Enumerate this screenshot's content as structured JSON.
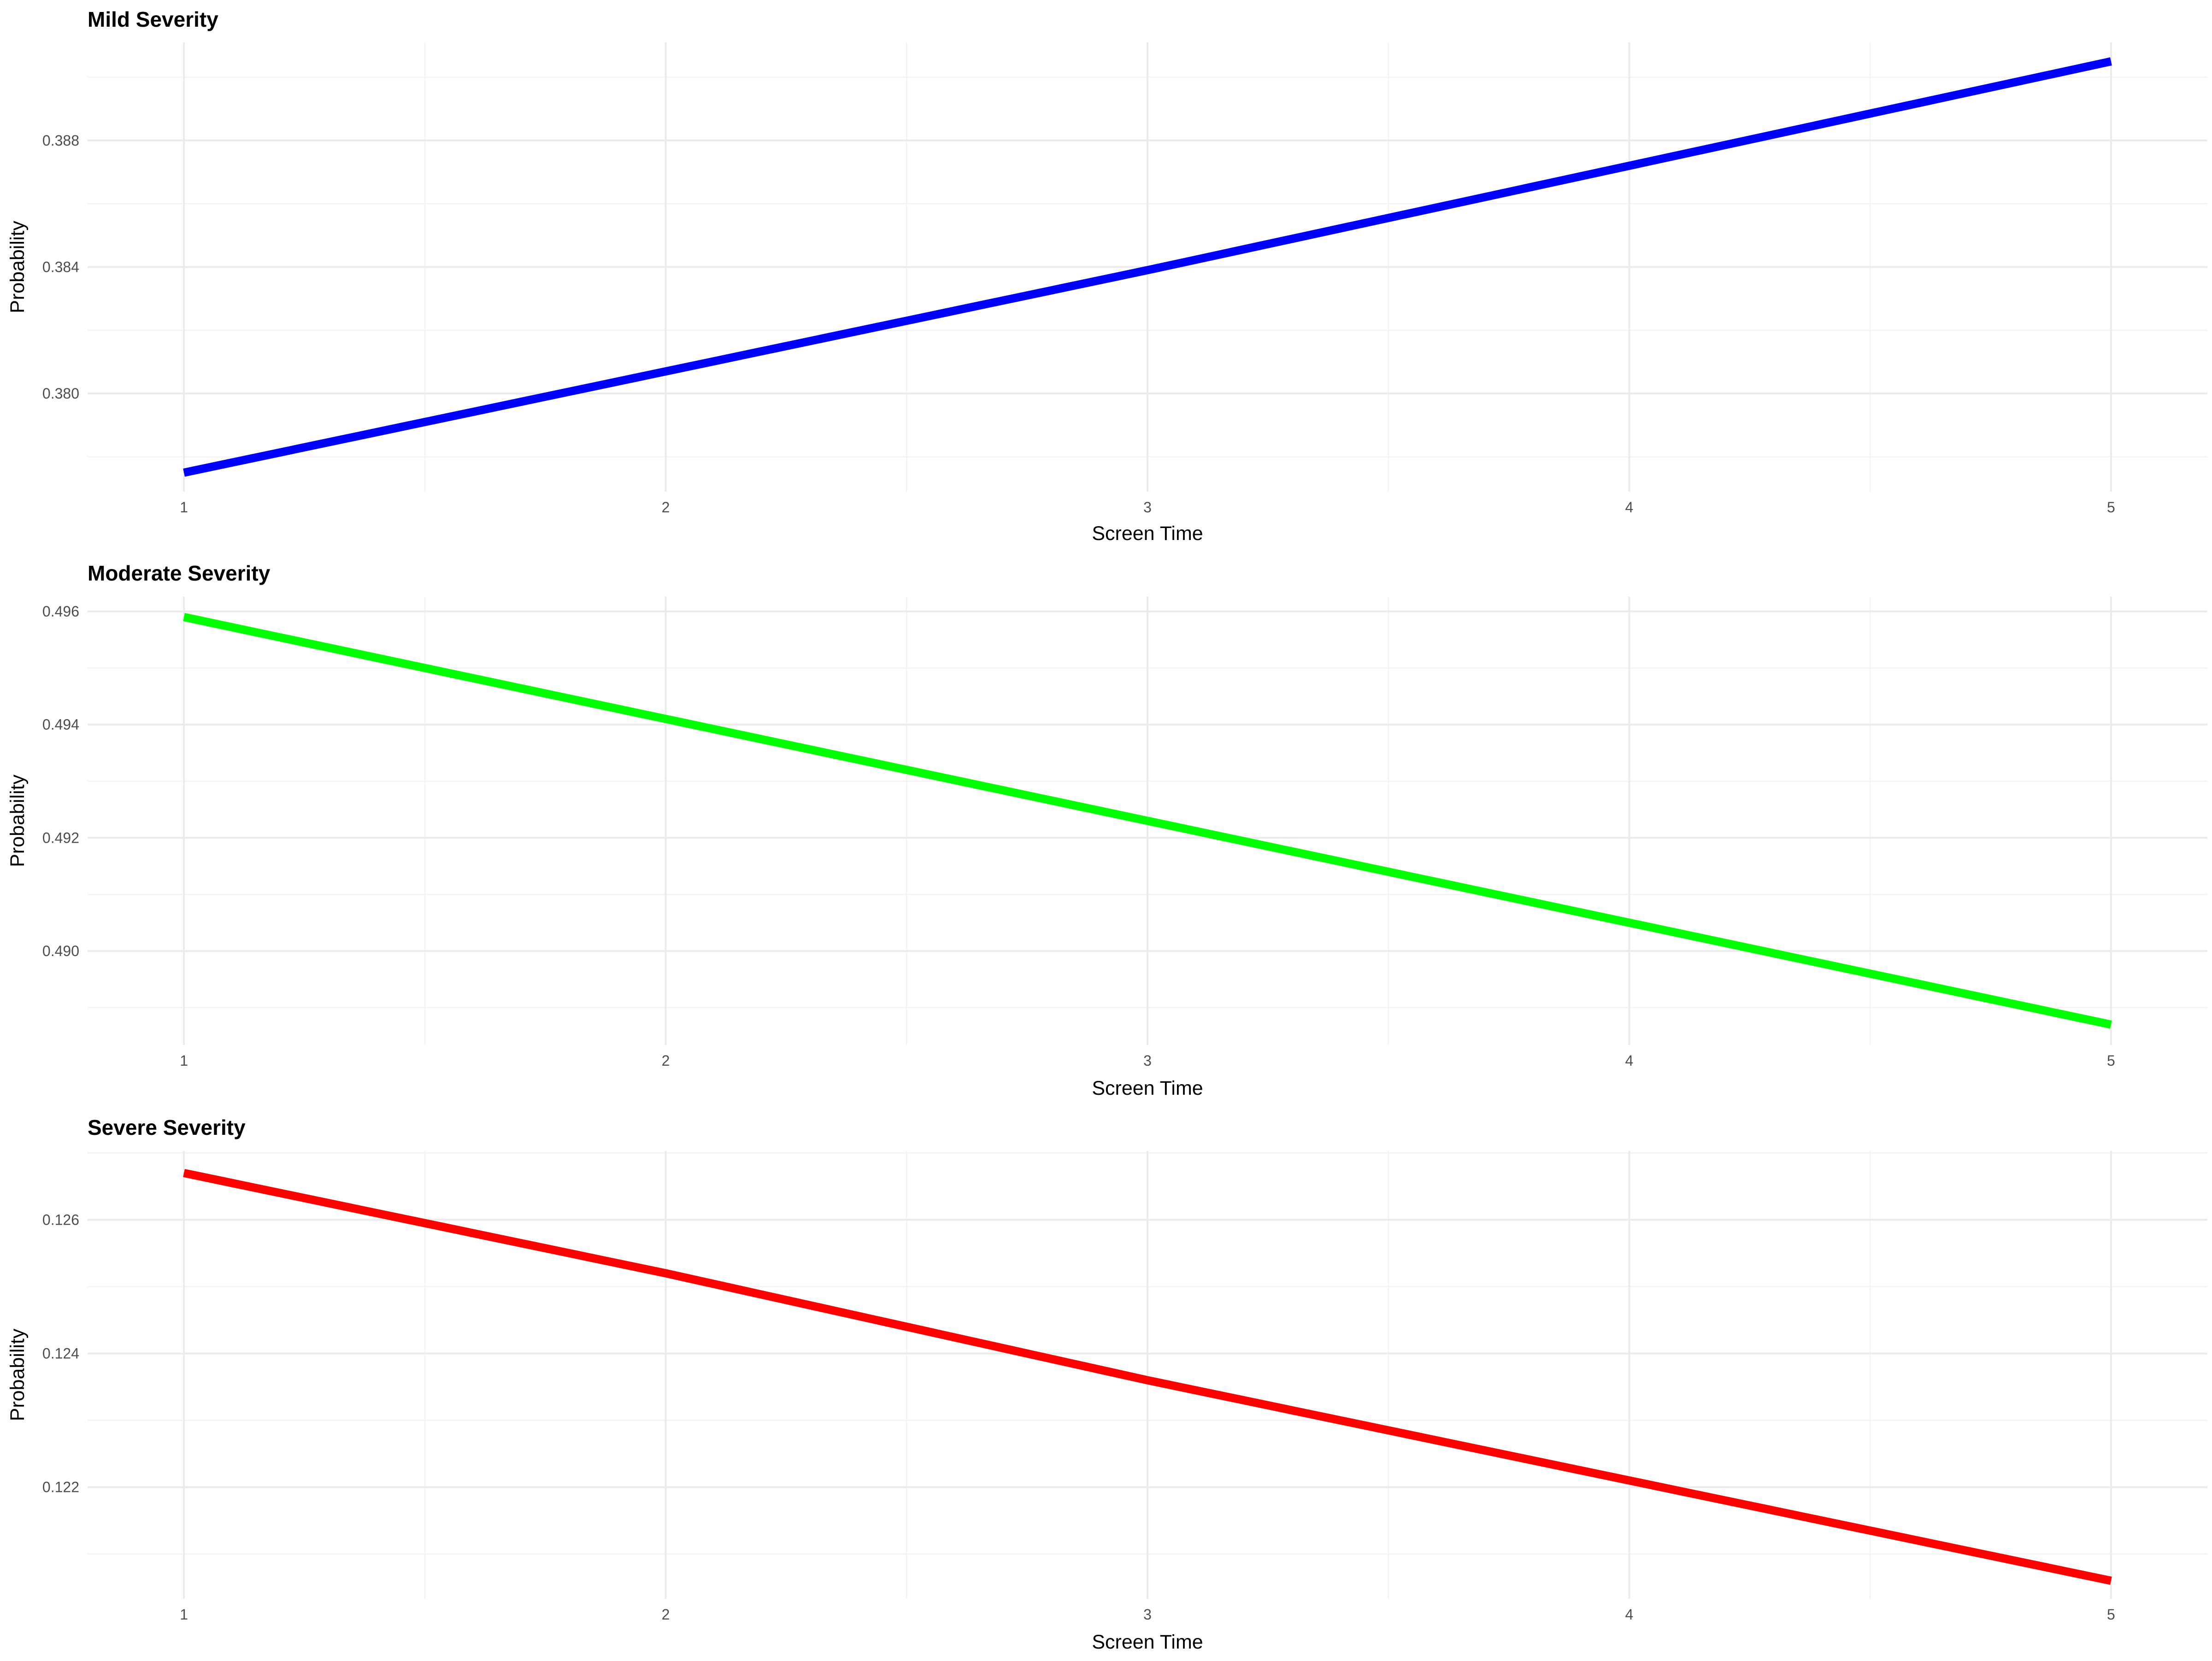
{
  "chart_data": [
    {
      "type": "line",
      "title": "Mild Severity",
      "xlabel": "Screen Time",
      "ylabel": "Probability",
      "x": [
        1,
        2,
        3,
        4,
        5
      ],
      "series": [
        {
          "values": [
            0.3775,
            0.3807,
            0.3839,
            0.3872,
            0.3905
          ],
          "color": "#0000ff"
        }
      ],
      "xlim": [
        0.8,
        5.2
      ],
      "ylim": [
        0.3769,
        0.3911
      ],
      "xticks": [
        1,
        2,
        3,
        4,
        5
      ],
      "yticks": [
        0.38,
        0.384,
        0.388
      ],
      "ytick_labels": [
        "0.380",
        "0.384",
        "0.388"
      ],
      "grid": true,
      "legend": "none"
    },
    {
      "type": "line",
      "title": "Moderate Severity",
      "xlabel": "Screen Time",
      "ylabel": "Probability",
      "x": [
        1,
        2,
        3,
        4,
        5
      ],
      "series": [
        {
          "values": [
            0.4959,
            0.4941,
            0.4923,
            0.4905,
            0.4887
          ],
          "color": "#00ff00"
        }
      ],
      "xlim": [
        0.8,
        5.2
      ],
      "ylim": [
        0.48834,
        0.49626
      ],
      "xticks": [
        1,
        2,
        3,
        4,
        5
      ],
      "yticks": [
        0.49,
        0.492,
        0.494,
        0.496
      ],
      "ytick_labels": [
        "0.490",
        "0.492",
        "0.494",
        "0.496"
      ],
      "grid": true,
      "legend": "none"
    },
    {
      "type": "line",
      "title": "Severe Severity",
      "xlabel": "Screen Time",
      "ylabel": "Probability",
      "x": [
        1,
        2,
        3,
        4,
        5
      ],
      "series": [
        {
          "values": [
            0.1267,
            0.1252,
            0.1236,
            0.1221,
            0.1206
          ],
          "color": "#ff0000"
        }
      ],
      "xlim": [
        0.8,
        5.2
      ],
      "ylim": [
        0.12033,
        0.12703
      ],
      "xticks": [
        1,
        2,
        3,
        4,
        5
      ],
      "yticks": [
        0.122,
        0.124,
        0.126
      ],
      "ytick_labels": [
        "0.122",
        "0.124",
        "0.126"
      ],
      "grid": true,
      "legend": "none"
    }
  ]
}
